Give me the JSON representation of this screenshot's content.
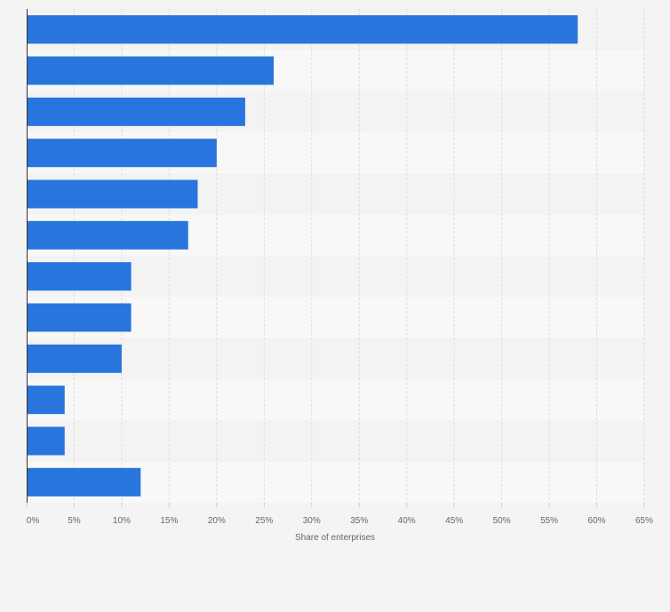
{
  "chart_data": {
    "type": "bar",
    "orientation": "horizontal",
    "title": "",
    "xlabel": "Share of enterprises",
    "ylabel": "",
    "categories": [
      "",
      "",
      "",
      "",
      "",
      "",
      "",
      "",
      "",
      "",
      "",
      ""
    ],
    "values": [
      58,
      26,
      23,
      20,
      18,
      17,
      11,
      11,
      10,
      4,
      4,
      12
    ],
    "xlim": [
      0,
      65
    ],
    "x_ticks": [
      0,
      5,
      10,
      15,
      20,
      25,
      30,
      35,
      40,
      45,
      50,
      55,
      60,
      65
    ],
    "x_tick_labels": [
      "0%",
      "5%",
      "10%",
      "15%",
      "20%",
      "25%",
      "30%",
      "35%",
      "40%",
      "45%",
      "50%",
      "55%",
      "60%",
      "65%"
    ],
    "grid": true,
    "legend": "none",
    "colors": {
      "bar": "#2876dd",
      "row_band_light": "#f8f8f8",
      "row_band_dark": "#f3f3f3",
      "grid": "#dddddd",
      "axis": "#333333",
      "text": "#666666",
      "background": "#f4f4f4"
    }
  }
}
